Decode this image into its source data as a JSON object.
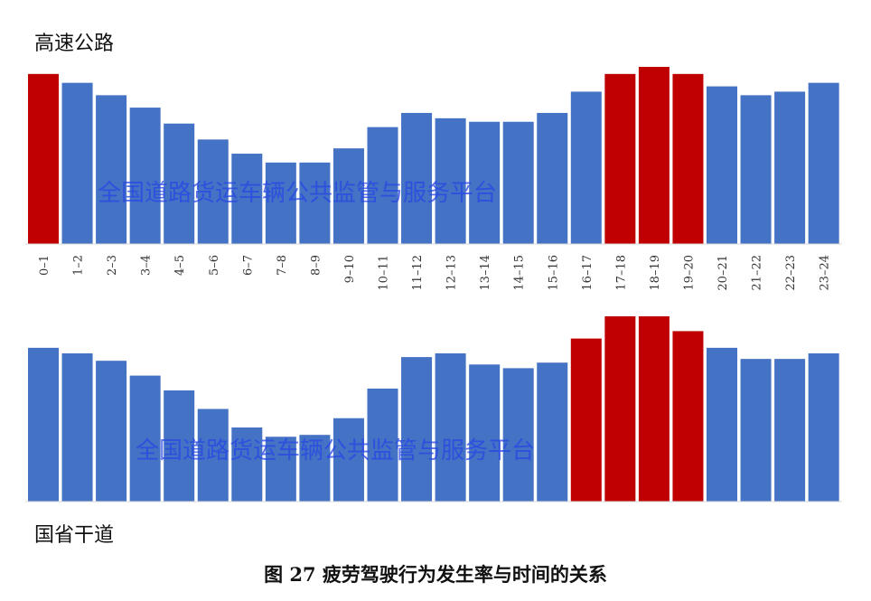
{
  "chart_data": [
    {
      "type": "bar",
      "title": "高速公路",
      "categories": [
        "0–1",
        "1–2",
        "2–3",
        "3–4",
        "4–5",
        "5–6",
        "6–7",
        "7–8",
        "8–9",
        "9–10",
        "10–11",
        "11–12",
        "12–13",
        "13–14",
        "14–15",
        "15–16",
        "16–17",
        "17–18",
        "18–19",
        "19–20",
        "20–21",
        "21–22",
        "22–23",
        "23–24"
      ],
      "values": [
        96,
        91,
        84,
        77,
        68,
        59,
        51,
        46,
        46,
        54,
        66,
        74,
        71,
        69,
        69,
        74,
        86,
        96,
        100,
        96,
        89,
        84,
        86,
        91
      ],
      "highlighted": [
        "0–1",
        "17–18",
        "18–19",
        "19–20"
      ],
      "value_scale": "relative (percent of maximum bar); no y-axis shown",
      "grid": false,
      "watermark": "全国道路货运车辆公共监管与服务平台"
    },
    {
      "type": "bar",
      "title": "国省干道",
      "categories": [
        "0–1",
        "1–2",
        "2–3",
        "3–4",
        "4–5",
        "5–6",
        "6–7",
        "7–8",
        "8–9",
        "9–10",
        "10–11",
        "11–12",
        "12–13",
        "13–14",
        "14–15",
        "15–16",
        "16–17",
        "17–18",
        "18–19",
        "19–20",
        "20–21",
        "21–22",
        "22–23",
        "23–24"
      ],
      "values": [
        83,
        80,
        76,
        68,
        60,
        50,
        40,
        35,
        36,
        45,
        61,
        78,
        80,
        74,
        72,
        75,
        88,
        100,
        100,
        92,
        83,
        77,
        77,
        80
      ],
      "highlighted": [
        "16–17",
        "17–18",
        "18–19",
        "19–20"
      ],
      "value_scale": "relative (percent of maximum bar); no y-axis shown",
      "grid": false,
      "watermark": "全国道路货运车辆公共监管与服务平台"
    }
  ],
  "caption": "图 27 疲劳驾驶行为发生率与时间的关系",
  "colors": {
    "normal": "#4472c4",
    "highlight": "#c00000",
    "watermark": "#2846e6"
  }
}
